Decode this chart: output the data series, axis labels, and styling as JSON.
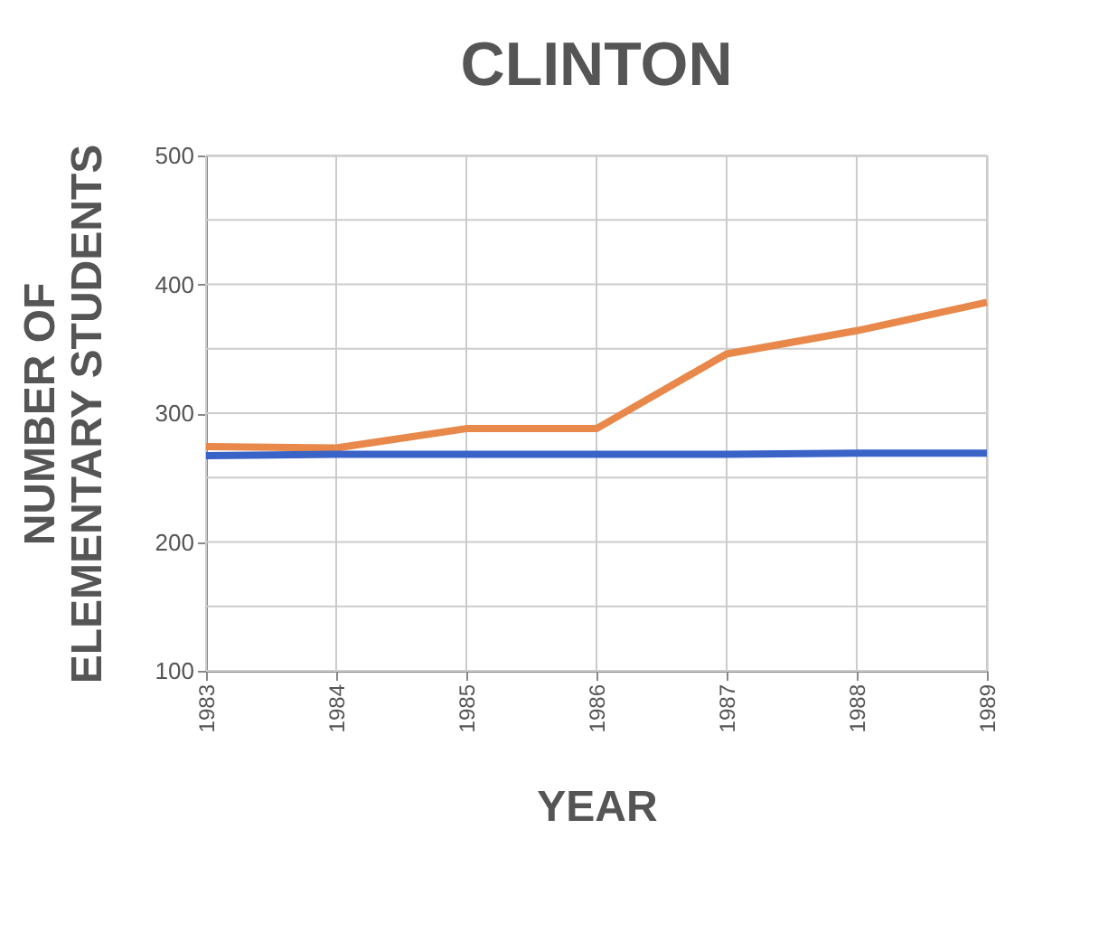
{
  "chart_data": {
    "type": "line",
    "title": "CLINTON",
    "xlabel": "YEAR",
    "ylabel": "NUMBER OF\nELEMENTARY STUDENTS",
    "x": [
      1983,
      1984,
      1985,
      1986,
      1987,
      1988,
      1989
    ],
    "series": [
      {
        "color": "#e8884a",
        "values": [
          274,
          273,
          288,
          288,
          346,
          364,
          386
        ]
      },
      {
        "color": "#3a63c8",
        "values": [
          267,
          268,
          268,
          268,
          268,
          269,
          269
        ]
      }
    ],
    "xlim": [
      1983,
      1989
    ],
    "xticks": [
      1983,
      1984,
      1985,
      1986,
      1987,
      1988,
      1989
    ],
    "ylim": [
      100,
      500
    ],
    "yticks": [
      100,
      {
        "value": 150,
        "label": null
      },
      200,
      {
        "value": 250,
        "label": null
      },
      300,
      {
        "value": 350,
        "label": null
      },
      400,
      {
        "value": 450,
        "label": null
      },
      500
    ],
    "grid": true,
    "marker": "none",
    "line_style": "solid"
  }
}
